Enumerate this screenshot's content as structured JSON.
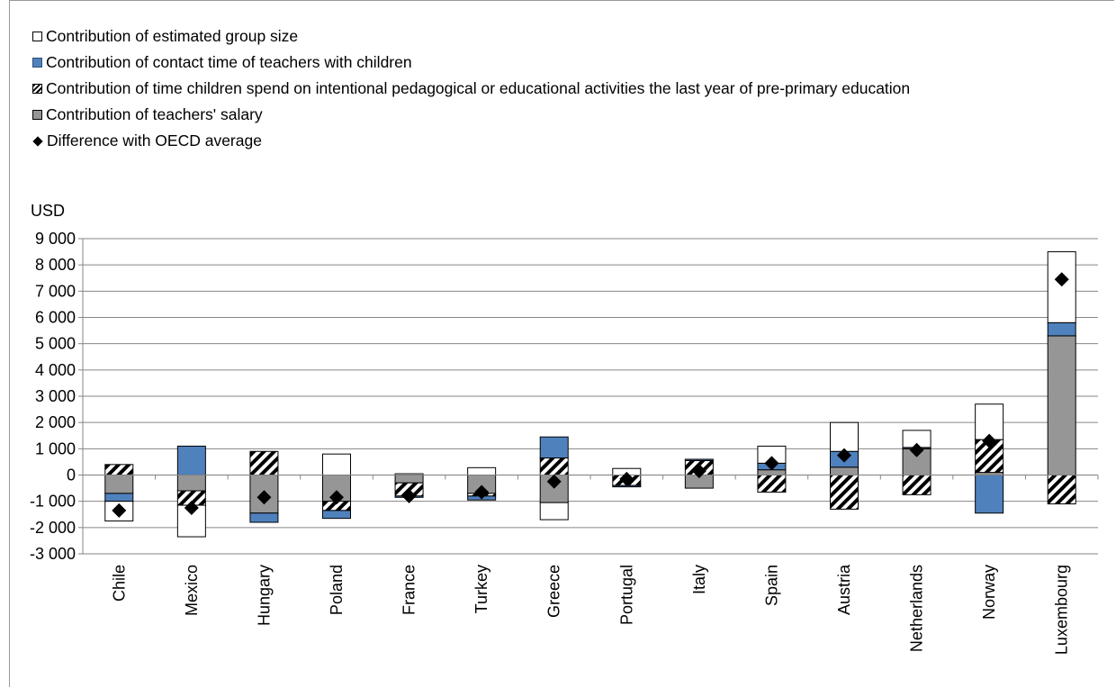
{
  "legend": [
    {
      "label": "Contribution of estimated group size",
      "swatch": "white"
    },
    {
      "label": "Contribution of contact time of teachers with children",
      "swatch": "blue"
    },
    {
      "label": "Contribution of time children spend on intentional pedagogical or educational activities the last year of pre-primary education",
      "swatch": "hatch"
    },
    {
      "label": "Contribution of teachers' salary",
      "swatch": "grey"
    },
    {
      "label": "Difference with OECD average",
      "swatch": "diamond"
    }
  ],
  "colors": {
    "group_size": "#ffffff",
    "contact_time": "#4f81bd",
    "teachers_salary": "#969696",
    "marker": "#000000",
    "grid": "#868686"
  },
  "chart_data": {
    "type": "bar",
    "stacked": true,
    "unit_label": "USD",
    "ylim": [
      -3000,
      9000
    ],
    "yticks": [
      9000,
      8000,
      7000,
      6000,
      5000,
      4000,
      3000,
      2000,
      1000,
      0,
      -1000,
      -2000,
      -3000
    ],
    "ytick_labels": [
      "9 000",
      "8 000",
      "7 000",
      "6 000",
      "5 000",
      "4 000",
      "3 000",
      "2 000",
      "1 000",
      "0",
      "-1 000",
      "-2 000",
      "-3 000"
    ],
    "grid": true,
    "legend_position": "top-left",
    "categories": [
      "Chile",
      "Mexico",
      "Hungary",
      "Poland",
      "France",
      "Turkey",
      "Greece",
      "Portugal",
      "Italy",
      "Spain",
      "Austria",
      "Netherlands",
      "Norway",
      "Luxembourg"
    ],
    "series": [
      {
        "name": "Contribution of estimated group size",
        "values": [
          -750,
          -1200,
          0,
          800,
          50,
          280,
          -650,
          250,
          0,
          650,
          1100,
          650,
          1350,
          2700
        ]
      },
      {
        "name": "Contribution of contact time of teachers with children",
        "values": [
          -300,
          1100,
          -350,
          -300,
          -50,
          -150,
          800,
          -50,
          50,
          250,
          600,
          50,
          -1450,
          500
        ]
      },
      {
        "name": "Contribution of time children spend on intentional pedagogical or educational activities the last year of pre-primary education",
        "values": [
          400,
          -550,
          900,
          -350,
          -500,
          -100,
          650,
          -400,
          550,
          -650,
          -1300,
          -750,
          1250,
          -1100
        ]
      },
      {
        "name": "Contribution of teachers' salary",
        "values": [
          -700,
          -600,
          -1450,
          -1000,
          -300,
          -700,
          -1050,
          0,
          -500,
          200,
          300,
          1000,
          100,
          5300
        ]
      }
    ],
    "difference_with_oecd_average": [
      -1350,
      -1250,
      -850,
      -850,
      -800,
      -650,
      -250,
      -150,
      150,
      450,
      750,
      950,
      1300,
      7450
    ]
  }
}
